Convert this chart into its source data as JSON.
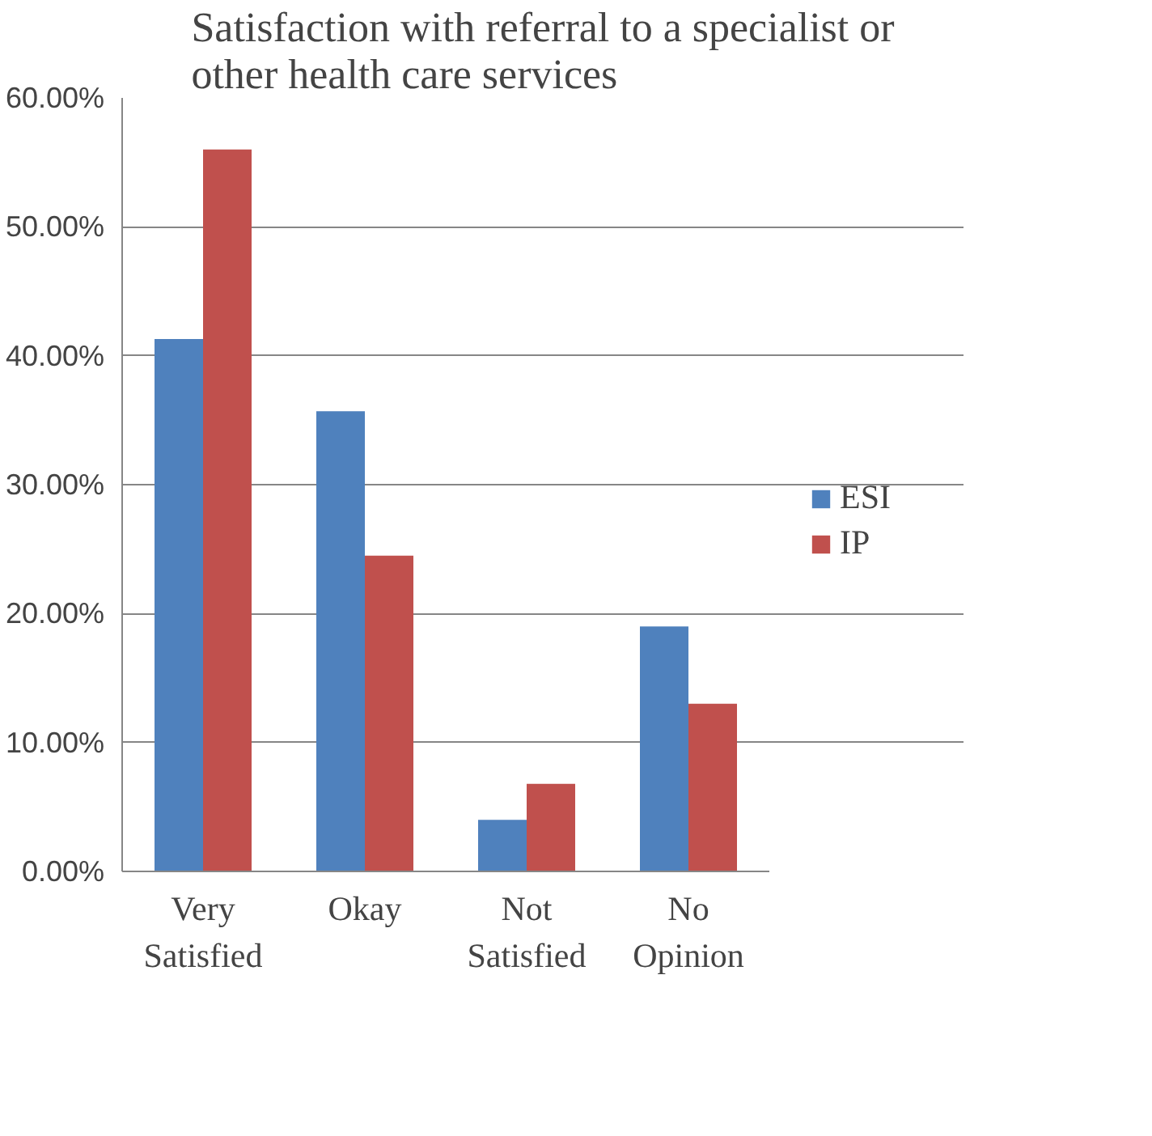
{
  "chart_data": {
    "type": "bar",
    "title": "Satisfaction with referral to a specialist or other health care services",
    "categories": [
      "Very Satisfied",
      "Okay",
      "Not Satisfied",
      "No Opinion"
    ],
    "series": [
      {
        "name": "ESI",
        "color": "#4f81bd",
        "values": [
          41.3,
          35.7,
          4.0,
          19.0
        ]
      },
      {
        "name": "IP",
        "color": "#c0504d",
        "values": [
          56.0,
          24.5,
          6.8,
          13.0
        ]
      }
    ],
    "ylim": [
      0,
      60
    ],
    "yticks": [
      {
        "value": 0,
        "label": "0.00%"
      },
      {
        "value": 10,
        "label": "10.00%"
      },
      {
        "value": 20,
        "label": "20.00%"
      },
      {
        "value": 30,
        "label": "30.00%"
      },
      {
        "value": 40,
        "label": "40.00%"
      },
      {
        "value": 50,
        "label": "50.00%"
      },
      {
        "value": 60,
        "label": "60.00%"
      }
    ],
    "grid": "y",
    "legend": "right"
  }
}
